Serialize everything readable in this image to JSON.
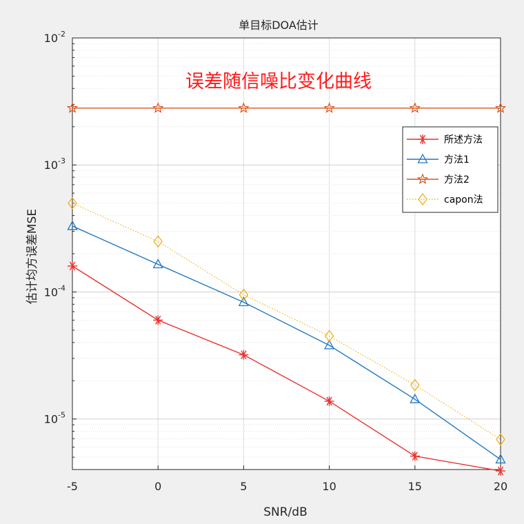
{
  "chart_data": {
    "type": "line",
    "title": "单目标DOA估计",
    "annotation": "误差随信噪比变化曲线",
    "xlabel": "SNR/dB",
    "ylabel": "估计均方误差MSE",
    "x": [
      -5,
      0,
      5,
      10,
      15,
      20
    ],
    "xlim": [
      -5,
      20
    ],
    "xticks": [
      "-5",
      "0",
      "5",
      "10",
      "15",
      "20"
    ],
    "yscale": "log",
    "ylim": [
      4e-06,
      0.01
    ],
    "yticks": [
      {
        "base": "10",
        "exp": "-2"
      },
      {
        "base": "10",
        "exp": "-3"
      },
      {
        "base": "10",
        "exp": "-4"
      },
      {
        "base": "10",
        "exp": "-5"
      }
    ],
    "grid": true,
    "legend_position": "upper-right",
    "series": [
      {
        "name": "所述方法",
        "color": "#e8312f",
        "marker": "asterisk",
        "line": "solid",
        "values": [
          0.00016,
          6e-05,
          3.2e-05,
          1.38e-05,
          5.1e-06,
          3.9e-06
        ]
      },
      {
        "name": "方法1",
        "color": "#1f77c2",
        "marker": "triangle",
        "line": "solid",
        "values": [
          0.00033,
          0.000165,
          8.3e-05,
          3.8e-05,
          1.43e-05,
          4.8e-06
        ]
      },
      {
        "name": "方法2",
        "color": "#d95319",
        "marker": "pentagram",
        "line": "solid",
        "values": [
          0.0028,
          0.0028,
          0.0028,
          0.0028,
          0.0028,
          0.0028
        ]
      },
      {
        "name": "capon法",
        "color": "#edb120",
        "marker": "diamond",
        "line": "dotted",
        "values": [
          0.0005,
          0.00025,
          9.5e-05,
          4.5e-05,
          1.85e-05,
          6.9e-06
        ]
      }
    ]
  }
}
